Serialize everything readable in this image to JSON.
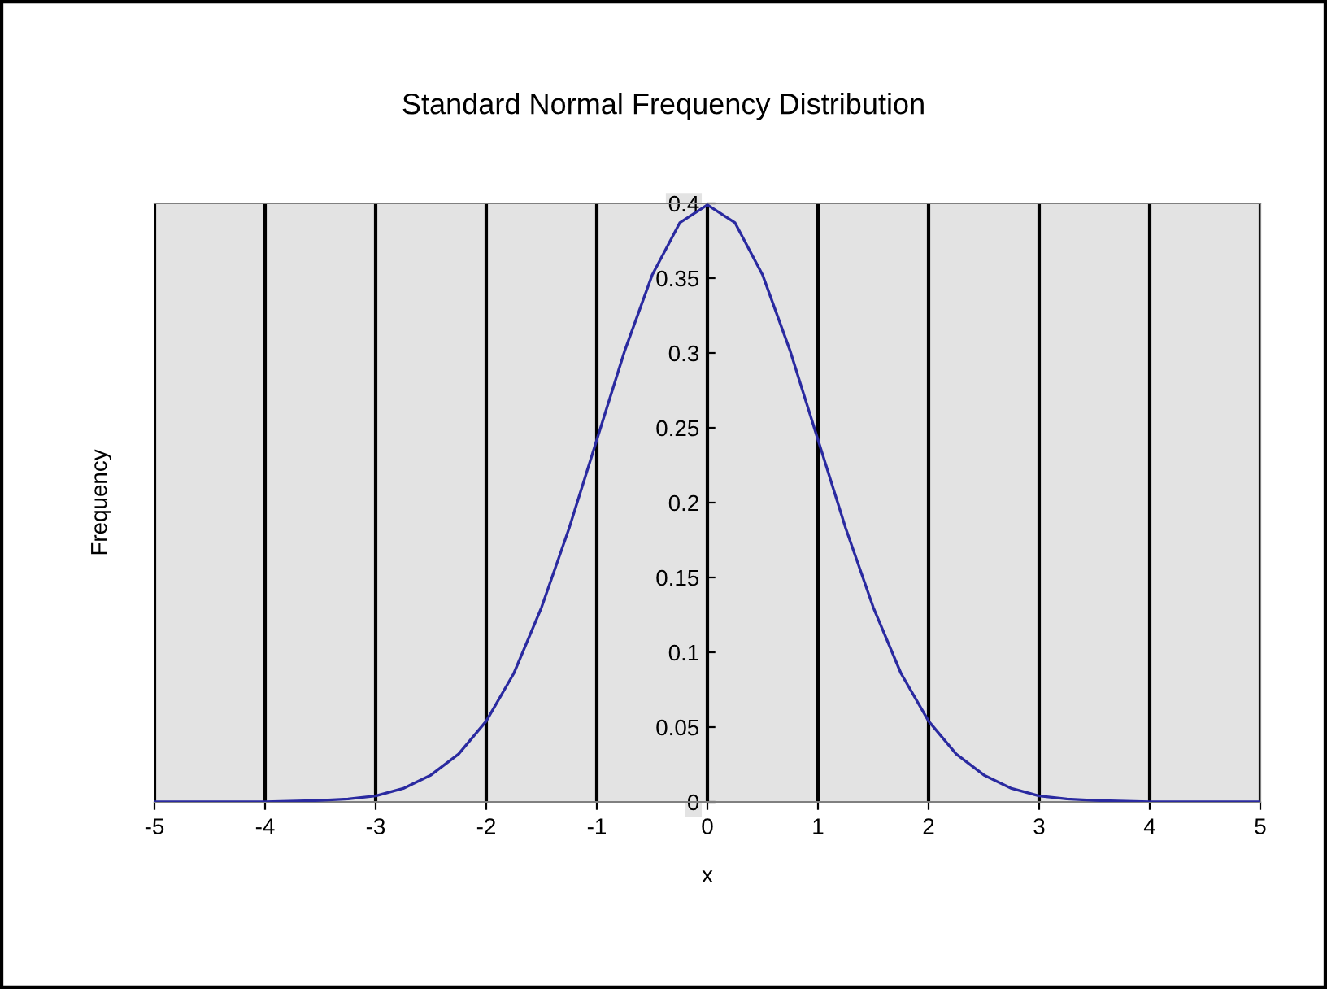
{
  "chart_data": {
    "type": "line",
    "title": "Standard Normal Frequency Distribution",
    "xlabel": "x",
    "ylabel": "Frequency",
    "x": [
      -5,
      -4.5,
      -4,
      -3.5,
      -3.25,
      -3,
      -2.75,
      -2.5,
      -2.25,
      -2,
      -1.75,
      -1.5,
      -1.25,
      -1,
      -0.75,
      -0.5,
      -0.25,
      0,
      0.25,
      0.5,
      0.75,
      1,
      1.25,
      1.5,
      1.75,
      2,
      2.25,
      2.5,
      2.75,
      3,
      3.25,
      3.5,
      4,
      4.5,
      5
    ],
    "series": [
      {
        "color": "#2a2aa0",
        "values": [
          0,
          0,
          0,
          0.001,
          0.002,
          0.004,
          0.009,
          0.018,
          0.032,
          0.054,
          0.086,
          0.13,
          0.183,
          0.242,
          0.301,
          0.352,
          0.387,
          0.399,
          0.387,
          0.352,
          0.301,
          0.242,
          0.183,
          0.13,
          0.086,
          0.054,
          0.032,
          0.018,
          0.009,
          0.004,
          0.002,
          0.001,
          0,
          0,
          0
        ]
      }
    ],
    "xlim": [
      -5,
      5
    ],
    "xticks": [
      -5,
      -4,
      -3,
      -2,
      -1,
      0,
      1,
      2,
      3,
      4,
      5
    ],
    "ylim": [
      0,
      0.4
    ],
    "yticks": [
      0,
      0.05,
      0.1,
      0.15,
      0.2,
      0.25,
      0.3,
      0.35,
      0.4
    ],
    "grid": "x",
    "legend": false,
    "marker": "none",
    "line_style": "solid"
  }
}
